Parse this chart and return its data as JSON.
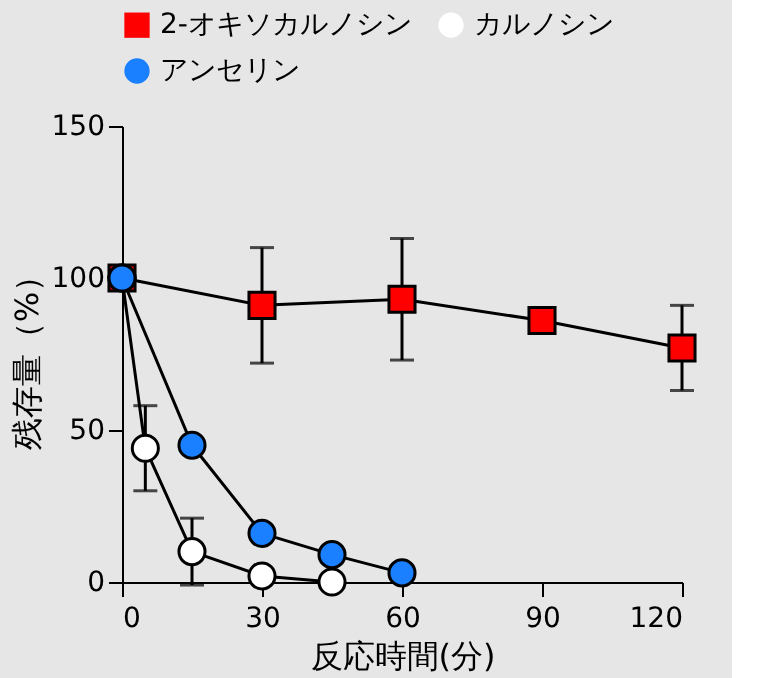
{
  "chart_data": {
    "type": "line",
    "xlabel": "反応時間(分)",
    "ylabel": "残存量（%）",
    "xlim": [
      0,
      120
    ],
    "ylim": [
      0,
      150
    ],
    "xticks": [
      0,
      30,
      60,
      90,
      120
    ],
    "yticks": [
      0,
      50,
      100,
      150
    ],
    "grid": false,
    "legend": "top",
    "line_style": "solid",
    "series": [
      {
        "name": "2-オキソカルノシン",
        "color": "#ff0000",
        "marker": "square",
        "x": [
          0,
          30,
          60,
          90,
          120
        ],
        "values": [
          100,
          91,
          93,
          86,
          77
        ],
        "errors": [
          null,
          19,
          20,
          null,
          14
        ]
      },
      {
        "name": "カルノシン",
        "color": "#ffffff",
        "marker": "circle",
        "x": [
          0,
          5,
          15,
          30,
          45
        ],
        "values": [
          100,
          44,
          10,
          2,
          0
        ],
        "errors": [
          null,
          14,
          11,
          null,
          null
        ]
      },
      {
        "name": "アンセリン",
        "color": "#1a80ff",
        "marker": "circle",
        "x": [
          0,
          15,
          30,
          45,
          60
        ],
        "values": [
          100,
          45,
          16,
          9,
          3
        ]
      }
    ]
  }
}
